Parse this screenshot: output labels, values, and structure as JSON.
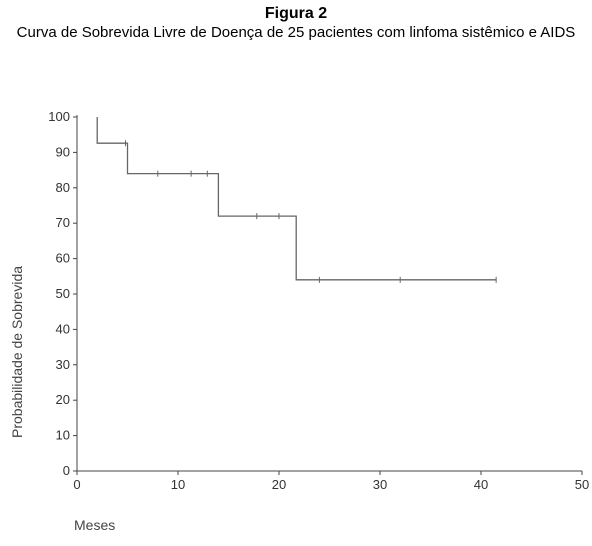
{
  "figure": {
    "label": "Figura 2",
    "caption": "Curva de Sobrevida Livre de Doença de 25 pacientes com linfoma sistêmico e AIDS"
  },
  "chart_data": {
    "type": "line",
    "title": "Curva de Sobrevida Livre de Doença de 25 pacientes com linfoma sistêmico e AIDS",
    "xlabel": "Meses",
    "ylabel": "Probabilidade de Sobrevida",
    "xlim": [
      0,
      50
    ],
    "ylim": [
      0,
      100
    ],
    "xticks": [
      0,
      10,
      20,
      30,
      40,
      50
    ],
    "yticks": [
      0,
      10,
      20,
      30,
      40,
      50,
      60,
      70,
      80,
      90,
      100
    ],
    "grid": false,
    "step_curve": {
      "x": [
        2,
        2,
        5,
        5,
        14,
        14,
        21.7,
        21.7,
        41.5
      ],
      "y": [
        100,
        92.6,
        92.6,
        84,
        84,
        72,
        72,
        54,
        54
      ]
    },
    "censored": [
      {
        "x": 4.8,
        "y": 92.6
      },
      {
        "x": 8,
        "y": 84
      },
      {
        "x": 11.3,
        "y": 84
      },
      {
        "x": 12.9,
        "y": 84
      },
      {
        "x": 17.8,
        "y": 72
      },
      {
        "x": 20,
        "y": 72
      },
      {
        "x": 24,
        "y": 54
      },
      {
        "x": 32,
        "y": 54
      },
      {
        "x": 41.5,
        "y": 54
      }
    ],
    "line_color": "#666666",
    "axis_color": "#444444"
  }
}
